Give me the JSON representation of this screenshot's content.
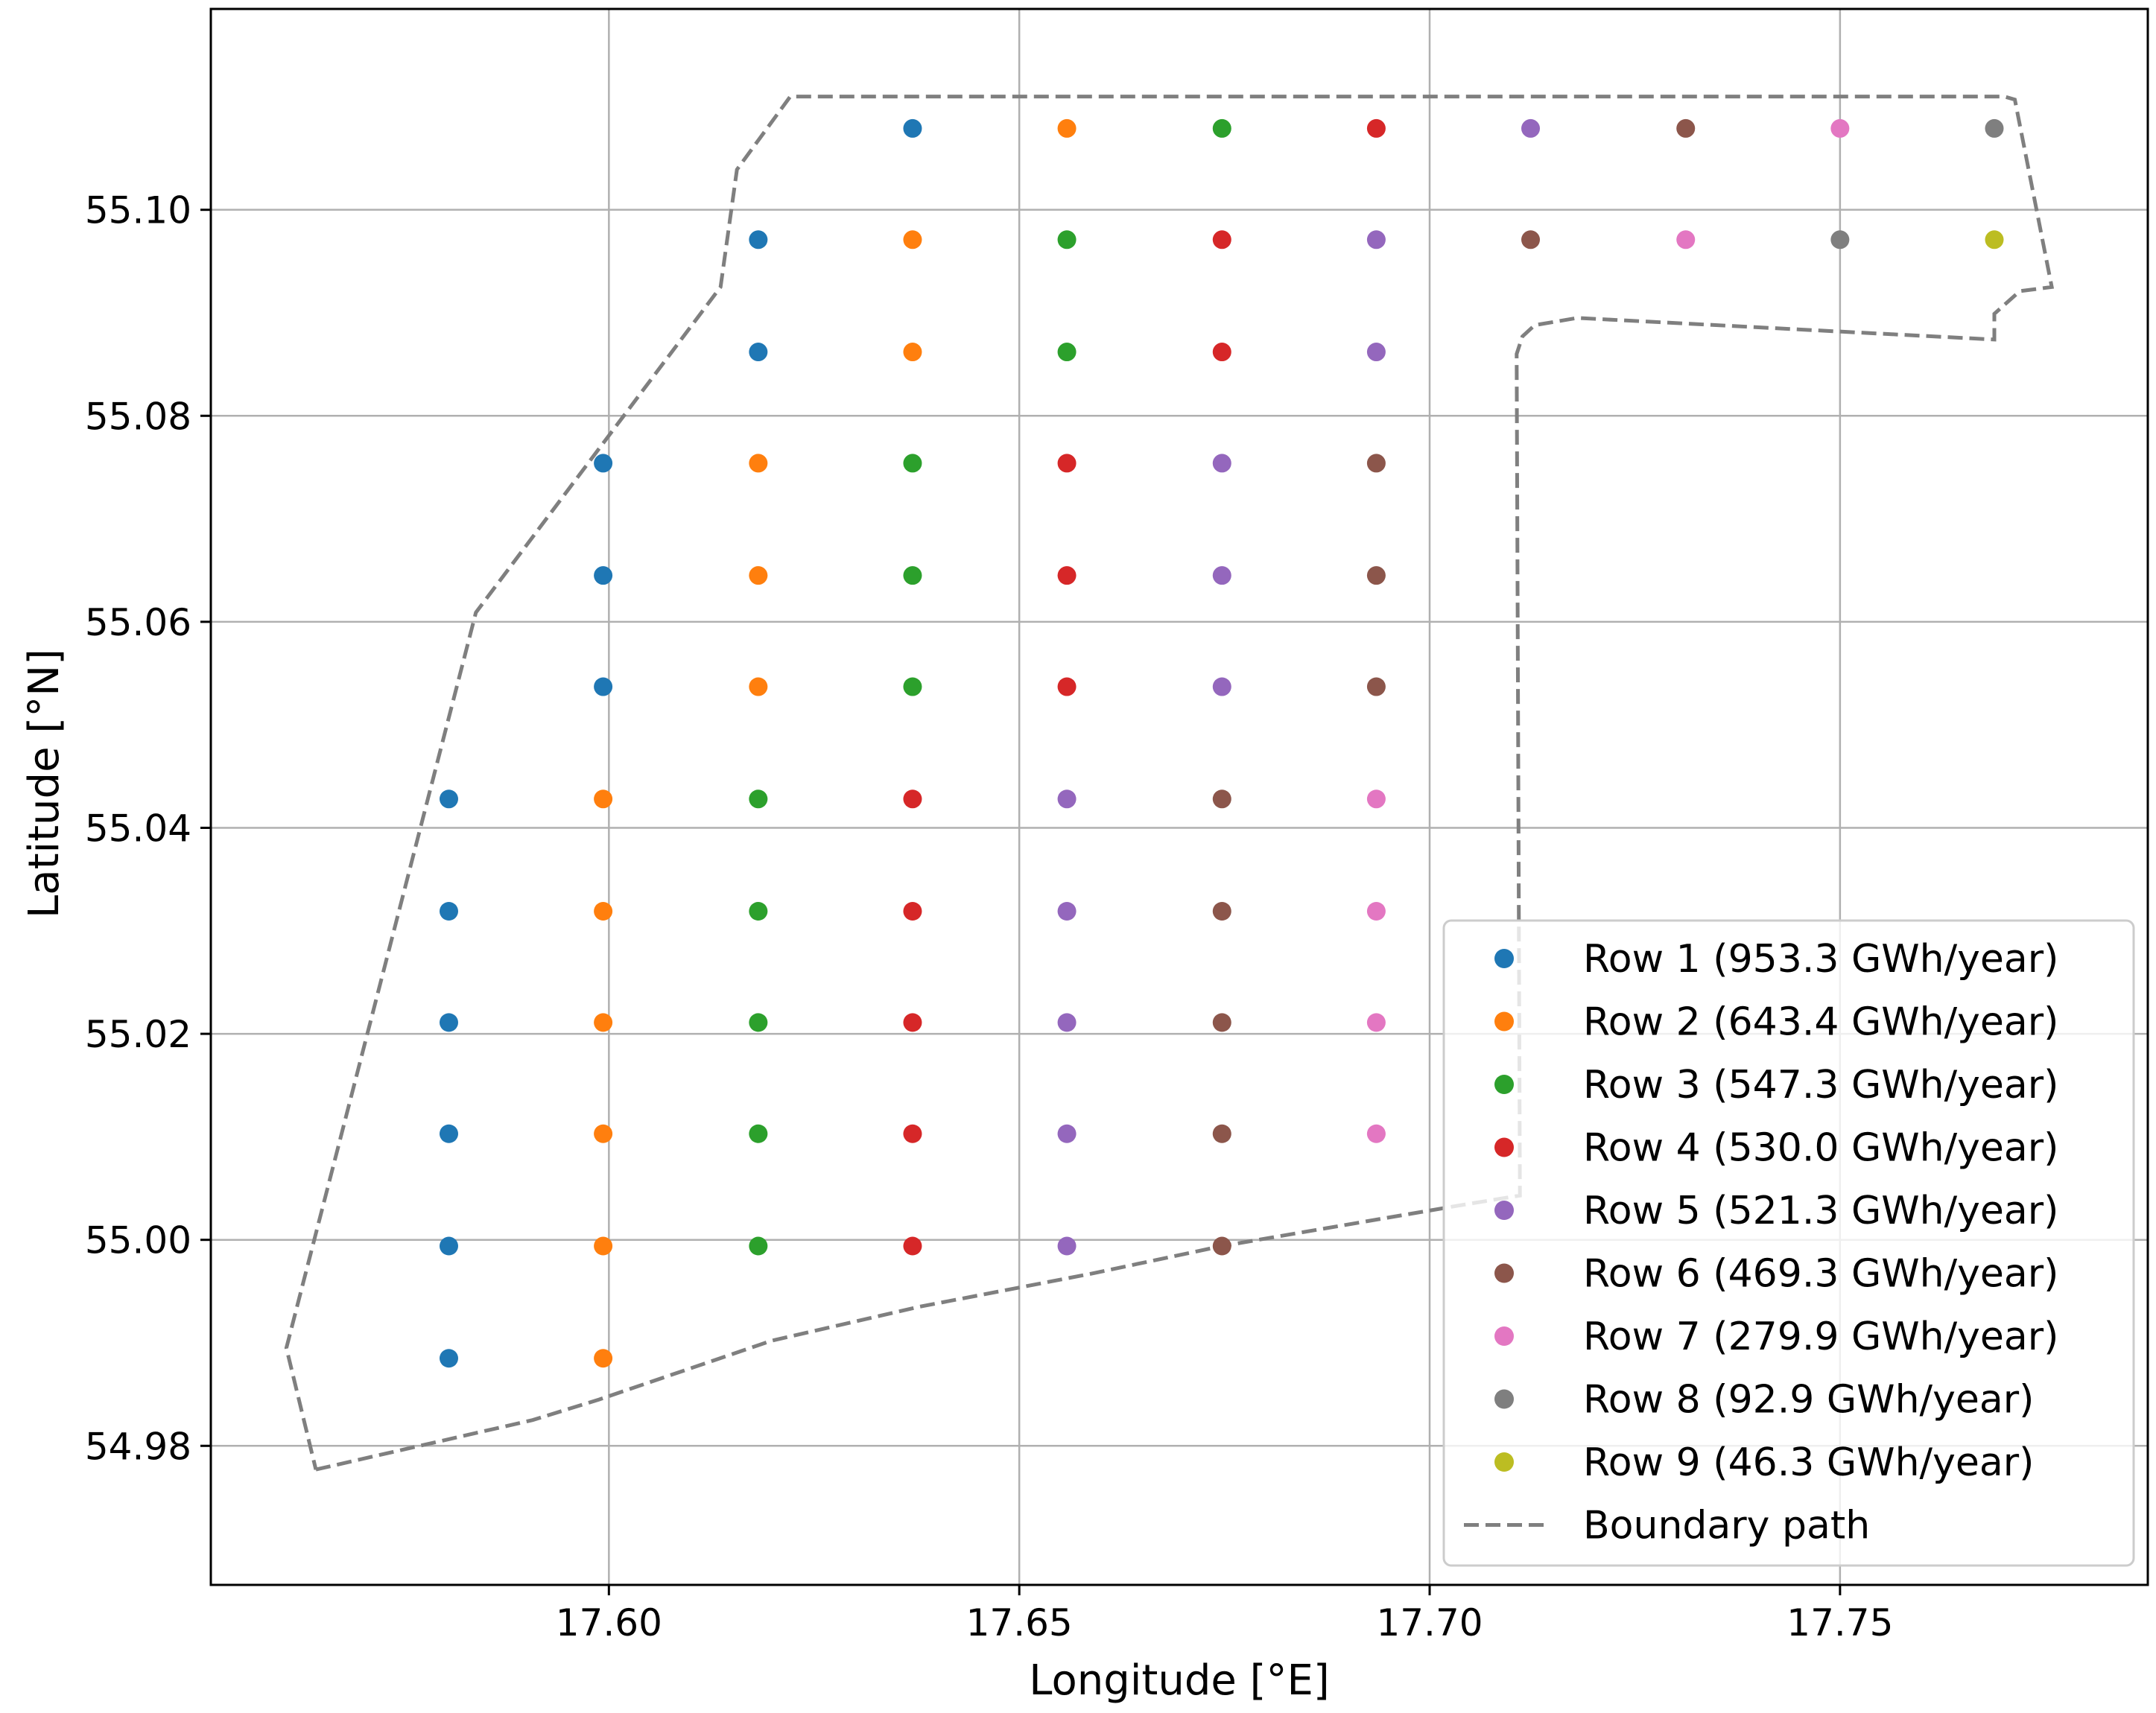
{
  "chart_data": {
    "type": "scatter",
    "title": "",
    "xlabel": "Longitude [°E]",
    "ylabel": "Latitude [°N]",
    "xlim": [
      17.5515,
      17.7875
    ],
    "ylim": [
      54.9665,
      55.1195
    ],
    "xticks": [
      17.6,
      17.65,
      17.7,
      17.75
    ],
    "xtick_labels": [
      "17.60",
      "17.65",
      "17.70",
      "17.75"
    ],
    "yticks": [
      54.98,
      55.0,
      55.02,
      55.04,
      55.06,
      55.08,
      55.1
    ],
    "ytick_labels": [
      "54.98",
      "55.00",
      "55.02",
      "55.04",
      "55.06",
      "55.08",
      "55.10"
    ],
    "grid": true,
    "legend_position": "lower-right",
    "series": [
      {
        "name": "Row 1 (953.3 GWh/year)",
        "color": "#1f77b4",
        "points": [
          [
            17.5805,
            54.9885
          ],
          [
            17.5805,
            54.9994
          ],
          [
            17.5805,
            55.0103
          ],
          [
            17.5805,
            55.0211
          ],
          [
            17.5805,
            55.0319
          ],
          [
            17.5805,
            55.0428
          ],
          [
            17.5993,
            55.0537
          ],
          [
            17.5993,
            55.0645
          ],
          [
            17.5993,
            55.0754
          ],
          [
            17.6182,
            55.0862
          ],
          [
            17.6182,
            55.0971
          ],
          [
            17.637,
            55.1079
          ]
        ]
      },
      {
        "name": "Row 2 (643.4 GWh/year)",
        "color": "#ff7f0e",
        "points": [
          [
            17.5993,
            54.9885
          ],
          [
            17.5993,
            54.9994
          ],
          [
            17.5993,
            55.0103
          ],
          [
            17.5993,
            55.0211
          ],
          [
            17.5993,
            55.0319
          ],
          [
            17.5993,
            55.0428
          ],
          [
            17.6182,
            55.0537
          ],
          [
            17.6182,
            55.0645
          ],
          [
            17.6182,
            55.0754
          ],
          [
            17.637,
            55.0862
          ],
          [
            17.637,
            55.0971
          ],
          [
            17.6558,
            55.1079
          ]
        ]
      },
      {
        "name": "Row 3 (547.3 GWh/year)",
        "color": "#2ca02c",
        "points": [
          [
            17.6182,
            54.9994
          ],
          [
            17.6182,
            55.0103
          ],
          [
            17.6182,
            55.0211
          ],
          [
            17.6182,
            55.0319
          ],
          [
            17.6182,
            55.0428
          ],
          [
            17.637,
            55.0537
          ],
          [
            17.637,
            55.0645
          ],
          [
            17.637,
            55.0754
          ],
          [
            17.6558,
            55.0862
          ],
          [
            17.6558,
            55.0971
          ],
          [
            17.6747,
            55.1079
          ]
        ]
      },
      {
        "name": "Row 4 (530.0 GWh/year)",
        "color": "#d62728",
        "points": [
          [
            17.637,
            54.9994
          ],
          [
            17.637,
            55.0103
          ],
          [
            17.637,
            55.0211
          ],
          [
            17.637,
            55.0319
          ],
          [
            17.637,
            55.0428
          ],
          [
            17.6558,
            55.0537
          ],
          [
            17.6558,
            55.0645
          ],
          [
            17.6558,
            55.0754
          ],
          [
            17.6747,
            55.0862
          ],
          [
            17.6747,
            55.0971
          ],
          [
            17.6935,
            55.1079
          ]
        ]
      },
      {
        "name": "Row 5 (521.3 GWh/year)",
        "color": "#9467bd",
        "points": [
          [
            17.6558,
            54.9994
          ],
          [
            17.6558,
            55.0103
          ],
          [
            17.6558,
            55.0211
          ],
          [
            17.6558,
            55.0319
          ],
          [
            17.6558,
            55.0428
          ],
          [
            17.6747,
            55.0537
          ],
          [
            17.6747,
            55.0645
          ],
          [
            17.6747,
            55.0754
          ],
          [
            17.6935,
            55.0862
          ],
          [
            17.6935,
            55.0971
          ],
          [
            17.7123,
            55.1079
          ]
        ]
      },
      {
        "name": "Row 6 (469.3 GWh/year)",
        "color": "#8c564b",
        "points": [
          [
            17.6747,
            54.9994
          ],
          [
            17.6747,
            55.0103
          ],
          [
            17.6747,
            55.0211
          ],
          [
            17.6747,
            55.0319
          ],
          [
            17.6747,
            55.0428
          ],
          [
            17.6935,
            55.0537
          ],
          [
            17.6935,
            55.0645
          ],
          [
            17.6935,
            55.0754
          ],
          [
            17.7123,
            55.0971
          ],
          [
            17.7312,
            55.1079
          ]
        ]
      },
      {
        "name": "Row 7 (279.9 GWh/year)",
        "color": "#e377c2",
        "points": [
          [
            17.6935,
            55.0103
          ],
          [
            17.6935,
            55.0211
          ],
          [
            17.6935,
            55.0319
          ],
          [
            17.6935,
            55.0428
          ],
          [
            17.7312,
            55.0971
          ],
          [
            17.75,
            55.1079
          ]
        ]
      },
      {
        "name": "Row 8 (92.9 GWh/year)",
        "color": "#7f7f7f",
        "points": [
          [
            17.75,
            55.0971
          ],
          [
            17.7688,
            55.1079
          ]
        ]
      },
      {
        "name": "Row 9 (46.3 GWh/year)",
        "color": "#bcbd22",
        "points": [
          [
            17.7688,
            55.0971
          ]
        ]
      }
    ],
    "boundary": {
      "name": "Boundary path",
      "color": "#7f7f7f",
      "style": "dashed",
      "points": [
        [
          17.5643,
          54.9777
        ],
        [
          17.5907,
          54.9825
        ],
        [
          17.5988,
          54.9845
        ],
        [
          17.6198,
          54.9902
        ],
        [
          17.6378,
          54.9935
        ],
        [
          17.6587,
          54.9967
        ],
        [
          17.6747,
          54.9994
        ],
        [
          17.7048,
          55.0035
        ],
        [
          17.711,
          55.0043
        ],
        [
          17.7106,
          55.086
        ],
        [
          17.7113,
          55.0877
        ],
        [
          17.7128,
          55.0888
        ],
        [
          17.718,
          55.0895
        ],
        [
          17.7688,
          55.0874
        ],
        [
          17.7688,
          55.0899
        ],
        [
          17.7719,
          55.0921
        ],
        [
          17.7758,
          55.0925
        ],
        [
          17.7713,
          55.1107
        ],
        [
          17.77,
          55.111
        ],
        [
          17.6221,
          55.111
        ],
        [
          17.6156,
          55.1039
        ],
        [
          17.6136,
          55.0925
        ],
        [
          17.5838,
          55.0609
        ],
        [
          17.5607,
          54.9895
        ],
        [
          17.5643,
          54.9777
        ]
      ]
    }
  }
}
